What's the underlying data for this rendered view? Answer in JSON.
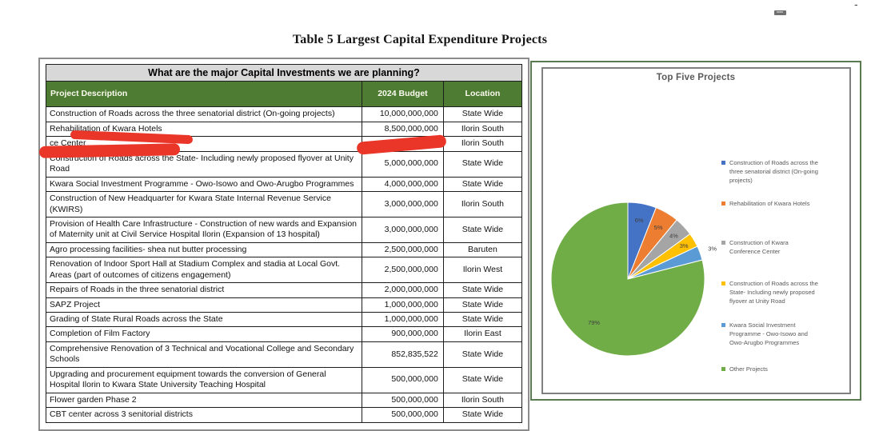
{
  "page": {
    "title": "Table 5 Largest Capital Expenditure Projects",
    "corner_dash": "-"
  },
  "table": {
    "question_header": "What are the major Capital Investments we are planning?",
    "columns": [
      "Project Description",
      "2024 Budget",
      "Location"
    ],
    "rows": [
      {
        "description": "Construction of Roads across the three senatorial district (On-going projects)",
        "budget": "10,000,000,000",
        "location": "State Wide"
      },
      {
        "description": "Rehabilitation of Kwara Hotels",
        "budget": "8,500,000,000",
        "location": "Ilorin South"
      },
      {
        "description": "ce Center",
        "budget": "",
        "location": "Ilorin South"
      },
      {
        "description": "Construction of Roads across the State- Including newly proposed flyover at Unity Road",
        "budget": "5,000,000,000",
        "location": "State Wide"
      },
      {
        "description": "Kwara Social Investment Programme - Owo-Isowo and Owo-Arugbo Programmes",
        "budget": "4,000,000,000",
        "location": "State Wide"
      },
      {
        "description": "Construction of New Headquarter for Kwara State Internal Revenue Service (KWIRS)",
        "budget": "3,000,000,000",
        "location": "Ilorin South"
      },
      {
        "description": "Provision of Health Care Infrastructure - Construction of new wards and Expansion of Maternity unit at Civil Service Hospital Ilorin (Expansion of 13 hospital)",
        "budget": "3,000,000,000",
        "location": "State Wide"
      },
      {
        "description": "Agro processing facilities- shea nut butter processing",
        "budget": "2,500,000,000",
        "location": "Baruten"
      },
      {
        "description": "Renovation of Indoor Sport Hall at Stadium Complex and stadia at Local Govt. Areas (part of outcomes of citizens engagement)",
        "budget": "2,500,000,000",
        "location": "Ilorin West"
      },
      {
        "description": "Repairs of Roads in the three senatorial district",
        "budget": "2,000,000,000",
        "location": "State Wide"
      },
      {
        "description": "SAPZ Project",
        "budget": "1,000,000,000",
        "location": "State Wide"
      },
      {
        "description": "Grading of State Rural Roads across the State",
        "budget": "1,000,000,000",
        "location": "State Wide"
      },
      {
        "description": "Completion of Film Factory",
        "budget": "900,000,000",
        "location": "Ilorin East"
      },
      {
        "description": "Comprehensive Renovation of 3 Technical and Vocational College and Secondary Schools",
        "budget": "852,835,522",
        "location": "State Wide"
      },
      {
        "description": "Upgrading and procurement equipment towards the conversion of General Hospital Ilorin to Kwara State University Teaching Hospital",
        "budget": "500,000,000",
        "location": "State Wide"
      },
      {
        "description": "Flower garden Phase 2",
        "budget": "500,000,000",
        "location": "Ilorin South"
      },
      {
        "description": "CBT center across 3 senitorial districts",
        "budget": "500,000,000",
        "location": "State Wide"
      }
    ]
  },
  "red_marker_strokes": [
    "underline across Rehabilitation of Kwara Hotels row",
    "stroke covering row 3 project description",
    "stroke covering row 3 budget value"
  ],
  "chart_data": {
    "type": "pie",
    "title": "Top Five Projects",
    "labels": [
      "Construction of Roads across the three senatorial district (On-going projects)",
      "Rehabilitation of Kwara Hotels",
      "Construction of Kwara Conference Center",
      "Construction of Roads across the State- Including newly proposed flyover at Unity Road",
      "Kwara Social Investment Programme - Owo-Isowo and Owo-Arugbo Programmes",
      "Other Projects"
    ],
    "values": [
      6,
      5,
      4,
      3,
      3,
      79
    ],
    "value_labels": [
      "6%",
      "5%",
      "4%",
      "3%",
      "3%",
      "79%"
    ],
    "colors": [
      "#4472C4",
      "#ED7D31",
      "#A5A5A5",
      "#FFC000",
      "#5B9BD5",
      "#70AD47"
    ],
    "legend_position": "right",
    "start_angle_deg": 0,
    "direction": "clockwise"
  }
}
